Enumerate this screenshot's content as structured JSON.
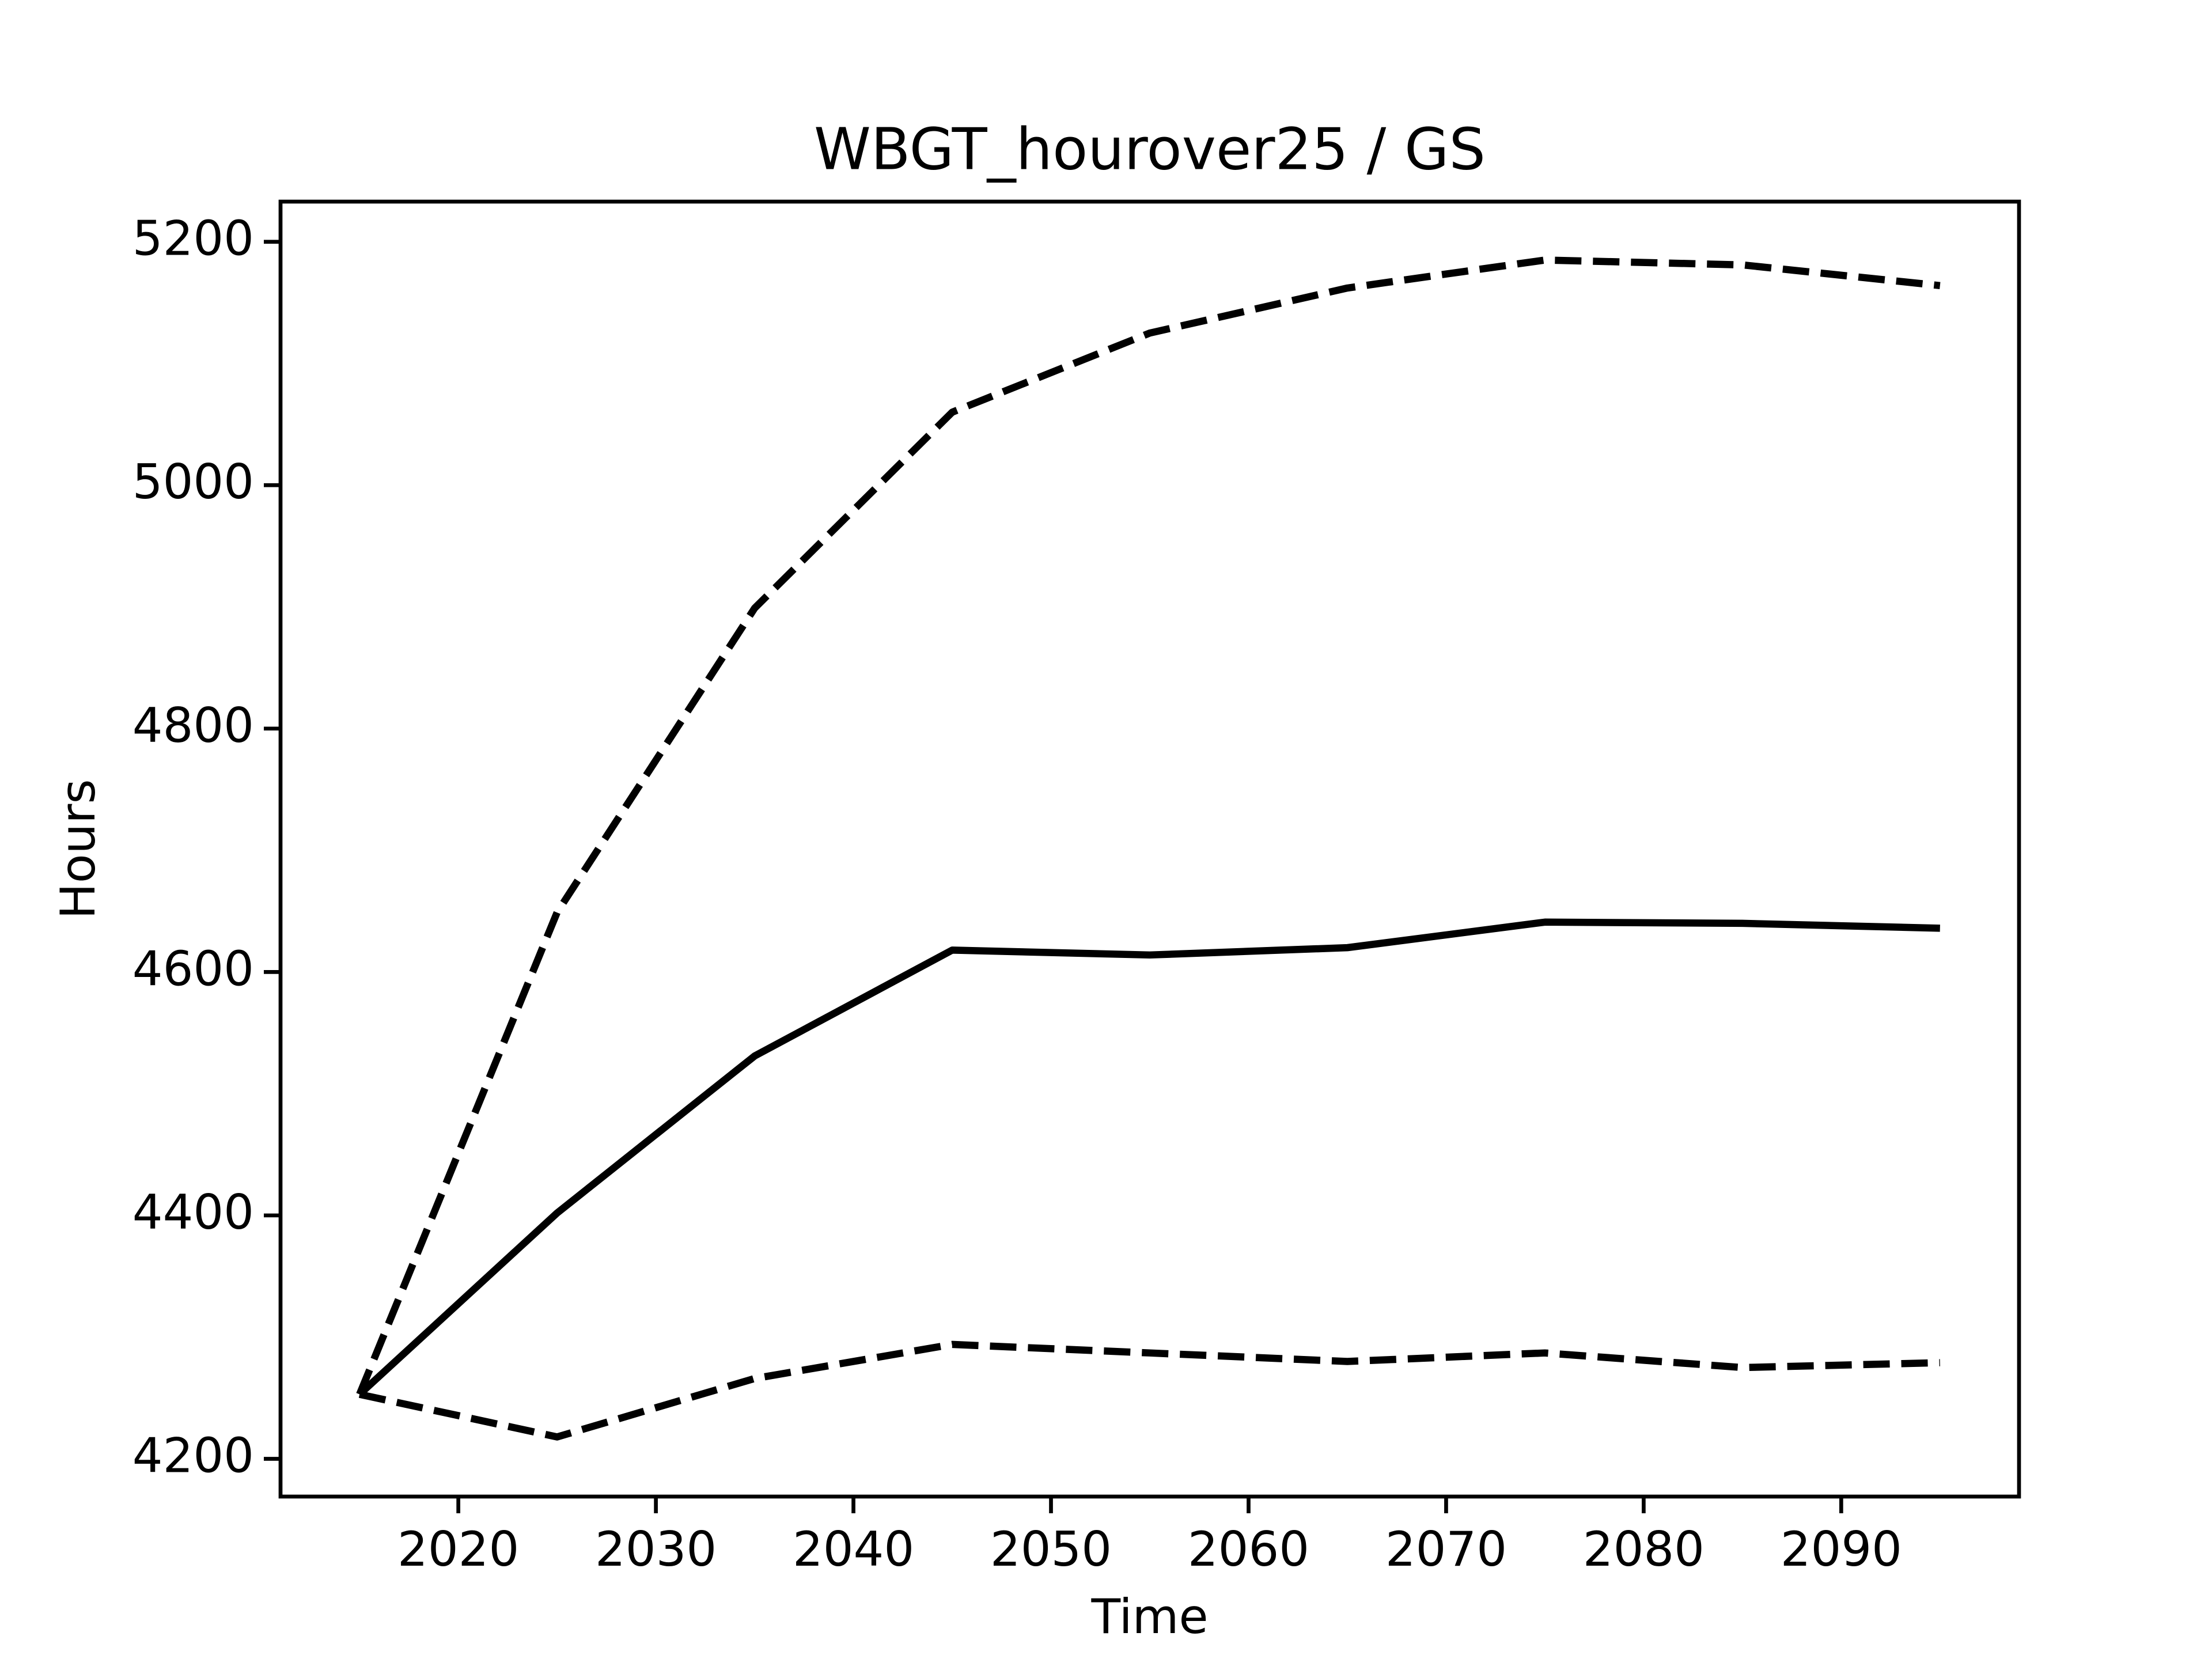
{
  "chart_data": {
    "type": "line",
    "title": "WBGT_hourover25 / GS",
    "xlabel": "Time",
    "ylabel": "Hours",
    "x": [
      2015,
      2025,
      2035,
      2045,
      2055,
      2065,
      2075,
      2085,
      2095
    ],
    "series": [
      {
        "color": "#000000",
        "linestyle": "solid",
        "values": [
          4253,
          4402,
          4531,
          4618,
          4614,
          4620,
          4641,
          4640,
          4636
        ]
      },
      {
        "color": "#000000",
        "linestyle": "dashed",
        "values": [
          4253,
          4649,
          4899,
          5060,
          5125,
          5162,
          5185,
          5181,
          5164
        ]
      },
      {
        "color": "#000000",
        "linestyle": "dashed",
        "values": [
          4253,
          4218,
          4266,
          4294,
          4287,
          4280,
          4287,
          4275,
          4279
        ]
      }
    ],
    "xlim": [
      2011,
      2099
    ],
    "xticks": [
      2020,
      2030,
      2040,
      2050,
      2060,
      2070,
      2080,
      2090
    ],
    "ylim": [
      4169,
      5233
    ],
    "yticks": [
      4200,
      4400,
      4600,
      4800,
      5000,
      5200
    ],
    "grid": false
  }
}
